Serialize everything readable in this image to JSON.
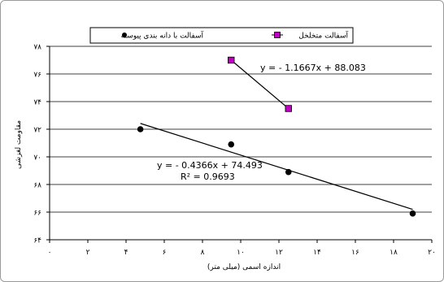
{
  "chart_data": {
    "type": "scatter",
    "title": "",
    "xlabel": "اندازه اسمی (میلی متر)",
    "ylabel": "مقاومت لغزشی",
    "xlim": [
      0,
      20
    ],
    "ylim": [
      64,
      78
    ],
    "x_ticks": [
      0,
      2,
      4,
      6,
      8,
      10,
      12,
      14,
      16,
      18,
      20
    ],
    "y_ticks": [
      64,
      66,
      68,
      70,
      72,
      74,
      76,
      78
    ],
    "x_tick_labels": [
      "۰",
      "۲",
      "۴",
      "۶",
      "۸",
      "۱۰",
      "۱۲",
      "۱۴",
      "۱۶",
      "۱۸",
      "۲۰"
    ],
    "y_tick_labels": [
      "۶۴",
      "۶۶",
      "۶۸",
      "۷۰",
      "۷۲",
      "۷۴",
      "۷۶",
      "۷۸"
    ],
    "grid": "horizontal",
    "legend_position": "top",
    "series": [
      {
        "name": "آسفالت با دانه بندی پیوسته",
        "marker": "circle",
        "color": "#000000",
        "x": [
          4.75,
          9.5,
          12.5,
          19
        ],
        "y": [
          72.0,
          70.9,
          68.9,
          65.9
        ],
        "trendline": {
          "slope": -0.4366,
          "intercept": 74.493,
          "x_range": [
            4.75,
            19
          ]
        },
        "equation": "y = - 0.4366x + 74.493",
        "r2_label": "R² = 0.9693"
      },
      {
        "name": "آسفالت متخلخل",
        "marker": "square",
        "color": "#c000c0",
        "x": [
          9.5,
          12.5
        ],
        "y": [
          77.0,
          73.5
        ],
        "trendline": {
          "slope": -1.1667,
          "intercept": 88.083,
          "x_range": [
            9.5,
            12.5
          ]
        },
        "equation": "y = - 1.1667x + 88.083"
      }
    ]
  }
}
